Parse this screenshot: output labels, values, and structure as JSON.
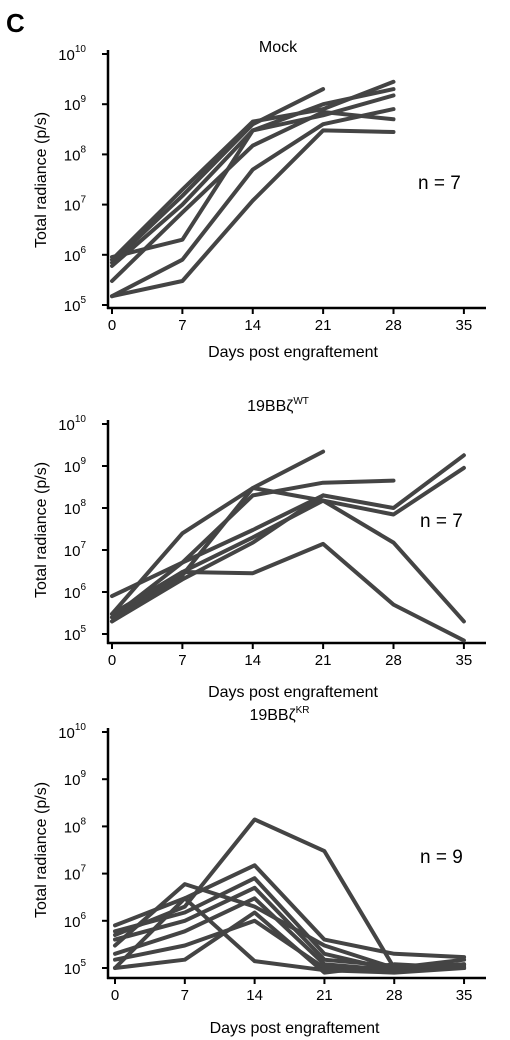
{
  "panel_letter": "C",
  "colors": {
    "series_line": "#444444",
    "axis": "#000000"
  },
  "chart_data": [
    {
      "type": "line",
      "title": "Mock",
      "title_main": "Mock",
      "title_sup": "",
      "annotation": "n = 7",
      "xlabel": "Days post engraftement",
      "ylabel": "Total radiance (p/s)",
      "yscale": "log",
      "xlim": [
        0,
        37
      ],
      "ylim": [
        100000,
        10000000000
      ],
      "xticks": [
        0,
        7,
        14,
        21,
        28,
        35
      ],
      "ytick_base": "10",
      "ytick_exponents": [
        "5",
        "6",
        "7",
        "8",
        "9",
        "10"
      ],
      "grid": false,
      "series": [
        {
          "x": [
            0,
            7,
            14,
            21
          ],
          "y": [
            700000,
            15000000,
            400000000,
            2000000000
          ]
        },
        {
          "x": [
            0,
            7,
            14,
            21,
            28
          ],
          "y": [
            800000,
            20000000,
            450000000,
            800000000,
            2800000000
          ]
        },
        {
          "x": [
            0,
            7,
            14,
            21,
            28
          ],
          "y": [
            600000,
            10000000,
            300000000,
            1000000000,
            2000000000
          ]
        },
        {
          "x": [
            0,
            7,
            14,
            21,
            28
          ],
          "y": [
            300000,
            7000000,
            150000000,
            700000000,
            500000000
          ]
        },
        {
          "x": [
            0,
            7,
            14,
            21,
            28
          ],
          "y": [
            900000,
            2000000,
            300000000,
            600000000,
            1500000000
          ]
        },
        {
          "x": [
            0,
            7,
            14,
            21,
            28
          ],
          "y": [
            150000,
            800000,
            50000000,
            400000000,
            800000000
          ]
        },
        {
          "x": [
            0,
            7,
            14,
            21,
            28
          ],
          "y": [
            150000,
            300000,
            12000000,
            300000000,
            280000000
          ]
        }
      ]
    },
    {
      "type": "line",
      "title": "19BBζWT",
      "title_main": "19BBζ",
      "title_sup": "WT",
      "annotation": "n = 7",
      "xlabel": "Days post engraftement",
      "ylabel": "Total radiance (p/s)",
      "yscale": "log",
      "xlim": [
        0,
        37
      ],
      "ylim": [
        100000,
        10000000000
      ],
      "xticks": [
        0,
        7,
        14,
        21,
        28,
        35
      ],
      "ytick_base": "10",
      "ytick_exponents": [
        "5",
        "6",
        "7",
        "8",
        "9",
        "10"
      ],
      "grid": false,
      "series": [
        {
          "x": [
            0,
            7,
            14,
            21
          ],
          "y": [
            300000,
            25000000,
            300000000,
            2200000000
          ]
        },
        {
          "x": [
            0,
            7,
            14,
            21,
            28
          ],
          "y": [
            800000,
            5000000,
            200000000,
            400000000,
            450000000
          ]
        },
        {
          "x": [
            0,
            7,
            14,
            21,
            28,
            35
          ],
          "y": [
            250000,
            5000000,
            30000000,
            200000000,
            100000000,
            1800000000
          ]
        },
        {
          "x": [
            0,
            7,
            14,
            21,
            28,
            35
          ],
          "y": [
            200000,
            3000000,
            20000000,
            150000000,
            70000000,
            900000000
          ]
        },
        {
          "x": [
            0,
            7,
            14,
            21,
            28,
            35
          ],
          "y": [
            250000,
            2500000,
            300000000,
            150000000,
            15000000,
            200000
          ]
        },
        {
          "x": [
            0,
            7,
            14,
            21,
            28,
            35
          ],
          "y": [
            300000,
            3000000,
            2800000,
            14000000,
            500000,
            70000
          ]
        },
        {
          "x": [
            0,
            7,
            14,
            21
          ],
          "y": [
            200000,
            2000000,
            15000000,
            200000000
          ]
        }
      ]
    },
    {
      "type": "line",
      "title": "19BBζKR",
      "title_main": "19BBζ",
      "title_sup": "KR",
      "annotation": "n = 9",
      "xlabel": "Days post engraftement",
      "ylabel": "Total radiance (p/s)",
      "yscale": "log",
      "xlim": [
        0,
        37
      ],
      "ylim": [
        100000,
        10000000000
      ],
      "xticks": [
        0,
        7,
        14,
        21,
        28,
        35
      ],
      "ytick_base": "10",
      "ytick_exponents": [
        "5",
        "6",
        "7",
        "8",
        "9",
        "10"
      ],
      "grid": false,
      "series": [
        {
          "x": [
            0,
            7,
            14,
            21,
            28,
            35
          ],
          "y": [
            500000,
            2000000,
            140000000,
            30000000,
            100000,
            150000
          ]
        },
        {
          "x": [
            0,
            7,
            14,
            21,
            28,
            35
          ],
          "y": [
            800000,
            3000000,
            15000000,
            400000,
            200000,
            170000
          ]
        },
        {
          "x": [
            0,
            7,
            14,
            21,
            28,
            35
          ],
          "y": [
            300000,
            6000000,
            2000000,
            300000,
            100000,
            100000
          ]
        },
        {
          "x": [
            0,
            7,
            14,
            21,
            28,
            35
          ],
          "y": [
            600000,
            1500000,
            8000000,
            200000,
            90000,
            120000
          ]
        },
        {
          "x": [
            0,
            7,
            14,
            21,
            28,
            35
          ],
          "y": [
            400000,
            1000000,
            5000000,
            150000,
            110000,
            100000
          ]
        },
        {
          "x": [
            0,
            7,
            14,
            21,
            28,
            35
          ],
          "y": [
            200000,
            600000,
            3000000,
            120000,
            90000,
            110000
          ]
        },
        {
          "x": [
            0,
            7,
            14,
            21,
            28,
            35
          ],
          "y": [
            150000,
            300000,
            1000000,
            100000,
            100000,
            120000
          ]
        },
        {
          "x": [
            0,
            7,
            14,
            21,
            28,
            35
          ],
          "y": [
            100000,
            150000,
            1500000,
            80000,
            120000,
            100000
          ]
        },
        {
          "x": [
            0,
            7,
            14,
            21,
            28,
            35
          ],
          "y": [
            100000,
            3000000,
            140000,
            90000,
            80000,
            100000
          ]
        }
      ]
    }
  ]
}
